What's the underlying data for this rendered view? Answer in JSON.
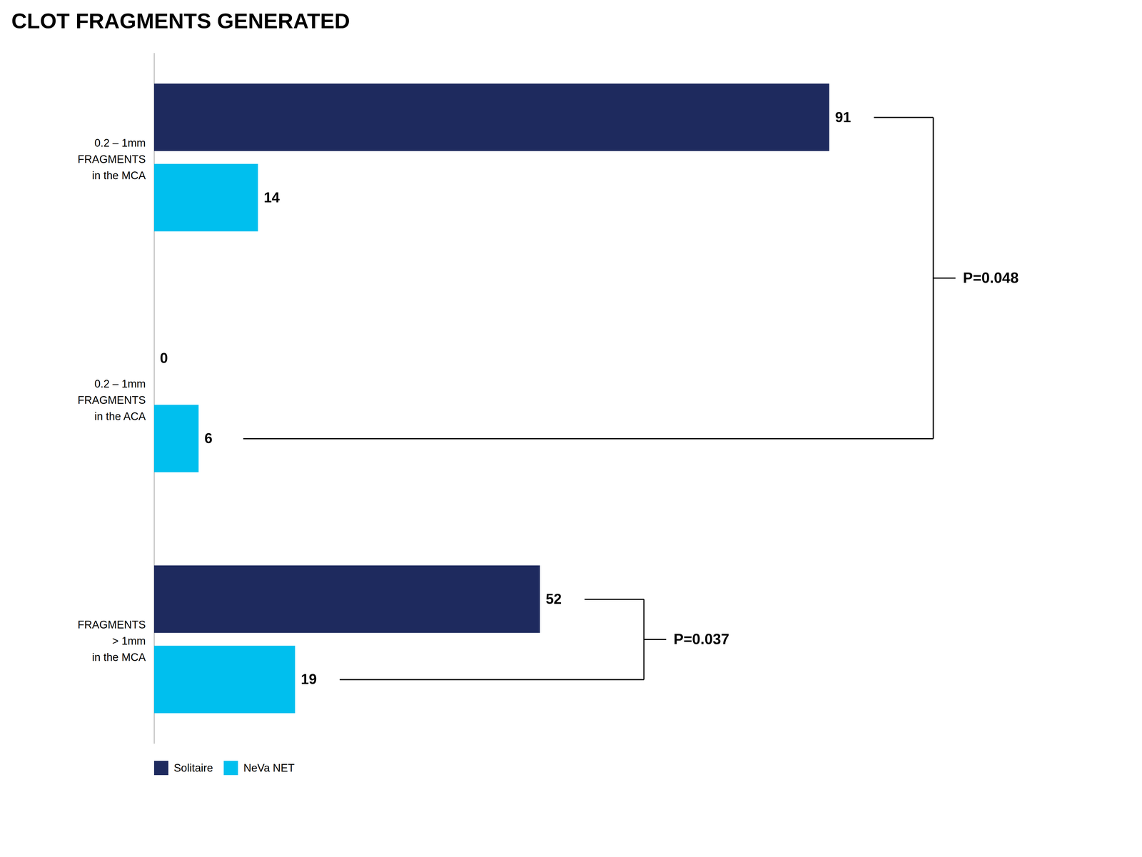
{
  "chart_data": {
    "type": "bar",
    "orientation": "horizontal",
    "title": "CLOT FRAGMENTS GENERATED",
    "categories": [
      "0.2 – 1mm\nFRAGMENTS\nin the MCA",
      "0.2 – 1mm\nFRAGMENTS\nin the ACA",
      "FRAGMENTS\n> 1mm\nin the MCA"
    ],
    "series": [
      {
        "name": "Solitaire",
        "color": "#1e2a5e",
        "values": [
          91,
          0,
          52
        ]
      },
      {
        "name": "NeVa NET",
        "color": "#00bfee",
        "values": [
          14,
          6,
          19
        ]
      }
    ],
    "xlim": [
      0,
      120
    ],
    "data_labels": true,
    "tick_labels": "y",
    "grid": false,
    "legend": "bottom",
    "annotations": [
      {
        "text": "P=0.048",
        "between": [
          [
            "0.2 – 1mm\nFRAGMENTS\nin the MCA",
            "Solitaire"
          ],
          [
            "0.2 – 1mm\nFRAGMENTS\nin the ACA",
            "NeVa NET"
          ]
        ]
      },
      {
        "text": "P=0.037",
        "between": [
          [
            "FRAGMENTS\n> 1mm\nin the MCA",
            "Solitaire"
          ],
          [
            "FRAGMENTS\n> 1mm\nin the MCA",
            "NeVa NET"
          ]
        ]
      }
    ]
  }
}
